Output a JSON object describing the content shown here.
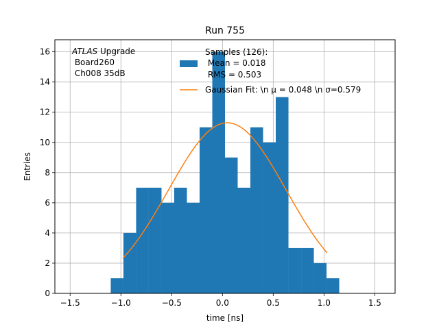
{
  "chart_data": {
    "type": "bar",
    "title": "Run 755",
    "xlabel": "time [ns]",
    "ylabel": "Entries",
    "xlim": [
      -1.65,
      1.7
    ],
    "ylim": [
      0,
      16.8
    ],
    "grid": true,
    "x_ticks": [
      -1.5,
      -1.0,
      -0.5,
      0.0,
      0.5,
      1.0,
      1.5
    ],
    "x_tick_labels": [
      "−1.5",
      "−1.0",
      "−0.5",
      "0.0",
      "0.5",
      "1.0",
      "1.5"
    ],
    "y_ticks": [
      0,
      2,
      4,
      6,
      8,
      10,
      12,
      14,
      16
    ],
    "y_tick_labels": [
      "0",
      "2",
      "4",
      "6",
      "8",
      "10",
      "12",
      "14",
      "16"
    ],
    "bin_edges": [
      -1.1,
      -0.975,
      -0.85,
      -0.725,
      -0.6,
      -0.475,
      -0.35,
      -0.225,
      -0.1,
      0.025,
      0.15,
      0.275,
      0.4,
      0.525,
      0.65,
      0.775,
      0.9,
      1.025,
      1.15
    ],
    "values": [
      1,
      4,
      7,
      7,
      6,
      7,
      6,
      11,
      16,
      9,
      7,
      11,
      10,
      13,
      3,
      3,
      2,
      1
    ],
    "histogram_color": "#1f77b4",
    "fit": {
      "mu": 0.048,
      "sigma": 0.579,
      "amplitude": 11.3,
      "x_range": [
        -0.98,
        1.03
      ],
      "color": "#ff7f0e"
    },
    "annotation": {
      "italic": "ATLAS",
      "line1_rest": " Upgrade",
      "line2": " Board260",
      "line3": " Ch008 35dB"
    },
    "legend": {
      "position": "top-center",
      "hist_lines": [
        "Samples (126):",
        " Mean = 0.018",
        " RMS = 0.503"
      ],
      "fit_label": "Gaussian Fit: \\n μ = 0.048 \\n σ=0.579"
    }
  }
}
